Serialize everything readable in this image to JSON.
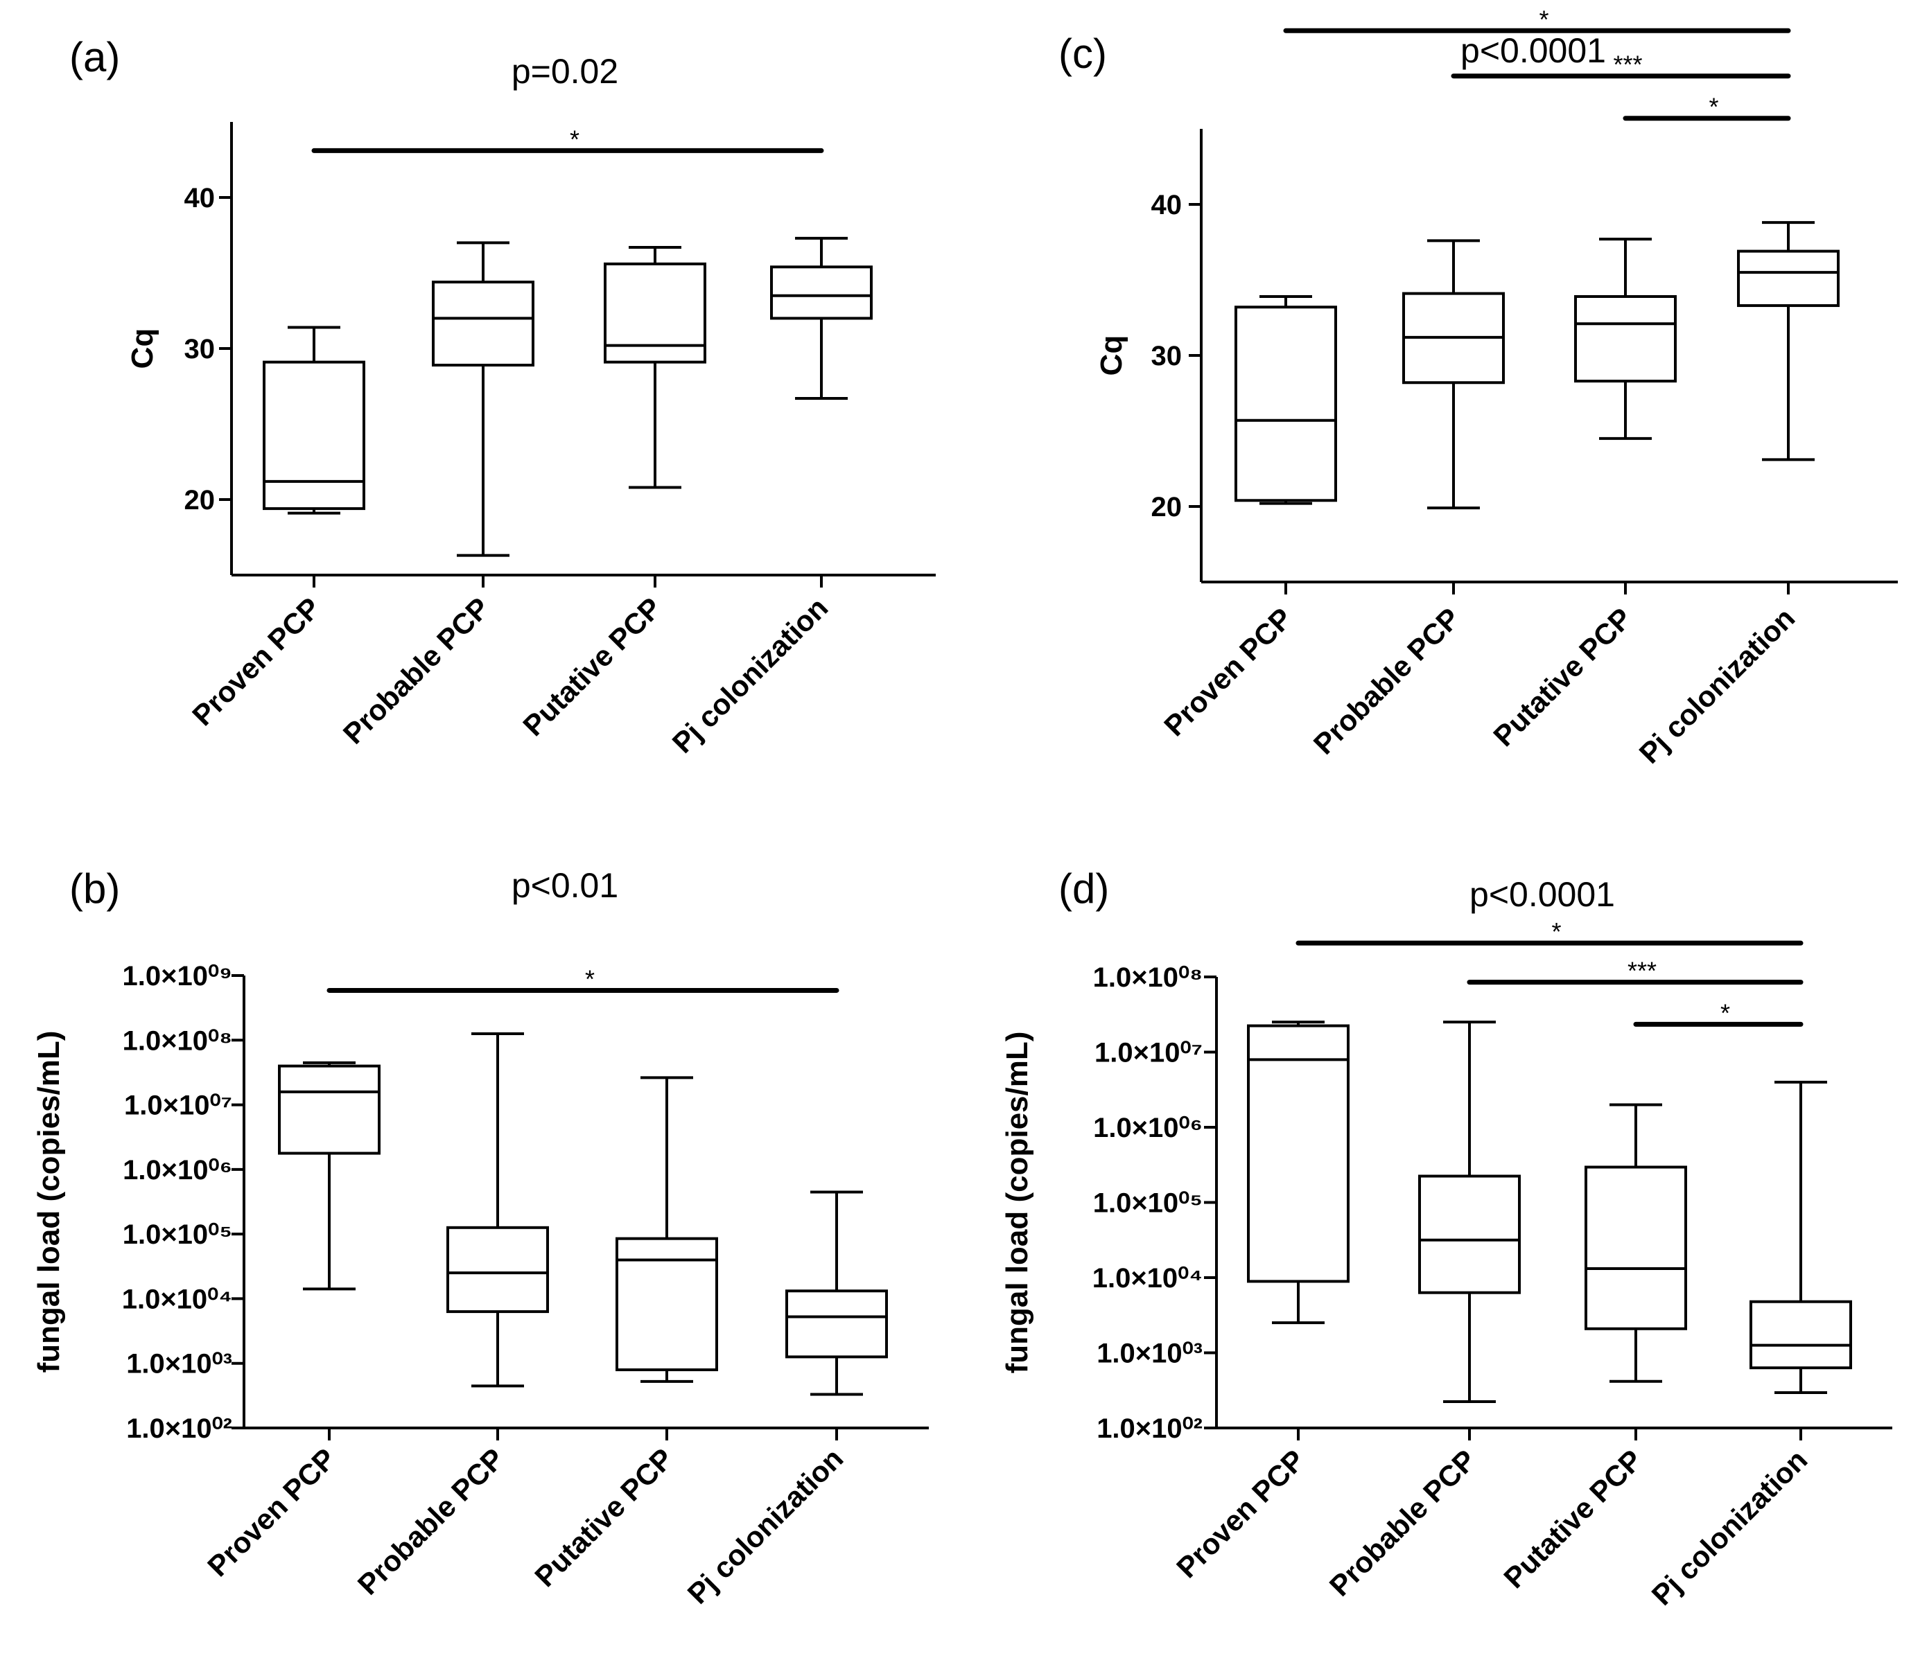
{
  "chart_data": [
    {
      "panel": "(a)",
      "type": "box",
      "title": "p=0.02",
      "ylabel": "Cq",
      "yscale": "linear",
      "ylim": [
        15,
        45
      ],
      "yticks": [
        20,
        30,
        40
      ],
      "ytick_labels": [
        "20",
        "30",
        "40"
      ],
      "categories": [
        "Proven PCP",
        "Probable PCP",
        "Putative PCP",
        "Pj colonization"
      ],
      "boxes": [
        {
          "min": 19.1,
          "q1": 19.4,
          "median": 21.2,
          "q3": 29.1,
          "max": 31.4
        },
        {
          "min": 16.3,
          "q1": 28.9,
          "median": 32.0,
          "q3": 34.4,
          "max": 37.0
        },
        {
          "min": 20.8,
          "q1": 29.1,
          "median": 30.2,
          "q3": 35.6,
          "max": 36.7
        },
        {
          "min": 26.7,
          "q1": 32.0,
          "median": 33.5,
          "q3": 35.4,
          "max": 37.3
        }
      ],
      "significance": [
        {
          "from": 0,
          "to": 3,
          "level": 43.1,
          "label": "*"
        }
      ]
    },
    {
      "panel": "(b)",
      "type": "box",
      "title": "p<0.01",
      "ylabel": "fungal load (copies/mL)",
      "yscale": "log",
      "ylim_log10": [
        2,
        9
      ],
      "yticks_log10": [
        2,
        3,
        4,
        5,
        6,
        7,
        8,
        9
      ],
      "ytick_labels": [
        "1.0×10⁰²",
        "1.0×10⁰³",
        "1.0×10⁰⁴",
        "1.0×10⁰⁵",
        "1.0×10⁰⁶",
        "1.0×10⁰⁷",
        "1.0×10⁰⁸",
        "1.0×10⁰⁹"
      ],
      "categories": [
        "Proven PCP",
        "Probable PCP",
        "Putative PCP",
        "Pj colonization"
      ],
      "boxes_log10": [
        {
          "min": 4.15,
          "q1": 6.25,
          "median": 7.2,
          "q3": 7.6,
          "max": 7.65
        },
        {
          "min": 2.65,
          "q1": 3.8,
          "median": 4.4,
          "q3": 5.1,
          "max": 8.1
        },
        {
          "min": 2.72,
          "q1": 2.9,
          "median": 4.6,
          "q3": 4.93,
          "max": 7.42
        },
        {
          "min": 2.52,
          "q1": 3.1,
          "median": 3.72,
          "q3": 4.12,
          "max": 5.65
        }
      ],
      "significance": [
        {
          "from": 0,
          "to": 3,
          "level_log10": 8.77,
          "label": "*"
        }
      ]
    },
    {
      "panel": "(c)",
      "type": "box",
      "title": "p<0.0001",
      "ylabel": "Cq",
      "yscale": "linear",
      "ylim": [
        15,
        45
      ],
      "yticks": [
        20,
        30,
        40
      ],
      "ytick_labels": [
        "20",
        "30",
        "40"
      ],
      "categories": [
        "Proven PCP",
        "Probable PCP",
        "Putative PCP",
        "Pj colonization"
      ],
      "boxes": [
        {
          "min": 20.2,
          "q1": 20.4,
          "median": 25.7,
          "q3": 33.2,
          "max": 33.9
        },
        {
          "min": 19.9,
          "q1": 28.2,
          "median": 31.2,
          "q3": 34.1,
          "max": 37.6
        },
        {
          "min": 24.5,
          "q1": 28.3,
          "median": 32.1,
          "q3": 33.9,
          "max": 37.7
        },
        {
          "min": 23.1,
          "q1": 33.3,
          "median": 35.5,
          "q3": 36.9,
          "max": 38.8
        }
      ],
      "significance": [
        {
          "from": 0,
          "to": 3,
          "level": 51.5,
          "label": "*"
        },
        {
          "from": 1,
          "to": 3,
          "level": 48.5,
          "label": "***"
        },
        {
          "from": 2,
          "to": 3,
          "level": 45.7,
          "label": "*"
        }
      ]
    },
    {
      "panel": "(d)",
      "type": "box",
      "title": "p<0.0001",
      "ylabel": "fungal load (copies/mL)",
      "yscale": "log",
      "ylim_log10": [
        2,
        8
      ],
      "yticks_log10": [
        2,
        3,
        4,
        5,
        6,
        7,
        8
      ],
      "ytick_labels": [
        "1.0×10⁰²",
        "1.0×10⁰³",
        "1.0×10⁰⁴",
        "1.0×10⁰⁵",
        "1.0×10⁰⁶",
        "1.0×10⁰⁷",
        "1.0×10⁰⁸"
      ],
      "categories": [
        "Proven PCP",
        "Probable PCP",
        "Putative PCP",
        "Pj colonization"
      ],
      "boxes_log10": [
        {
          "min": 3.4,
          "q1": 3.95,
          "median": 6.9,
          "q3": 7.35,
          "max": 7.4
        },
        {
          "min": 2.35,
          "q1": 3.8,
          "median": 4.5,
          "q3": 5.35,
          "max": 7.4
        },
        {
          "min": 2.62,
          "q1": 3.32,
          "median": 4.12,
          "q3": 5.47,
          "max": 6.3
        },
        {
          "min": 2.47,
          "q1": 2.8,
          "median": 3.1,
          "q3": 3.68,
          "max": 6.6
        }
      ],
      "significance": [
        {
          "from": 0,
          "to": 3,
          "level_log10": 8.45,
          "label": "*"
        },
        {
          "from": 1,
          "to": 3,
          "level_log10": 7.93,
          "label": "***"
        },
        {
          "from": 2,
          "to": 3,
          "level_log10": 7.37,
          "label": "*"
        }
      ]
    }
  ]
}
